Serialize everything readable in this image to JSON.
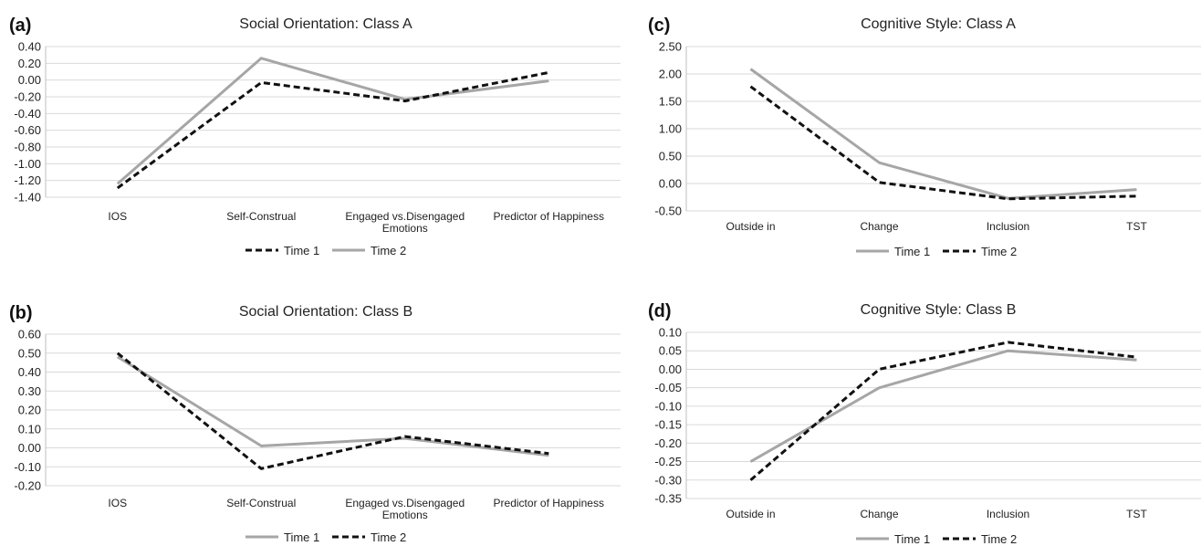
{
  "colors": {
    "grid": "#d9d9d9",
    "axis": "#bfbfbf",
    "solid": "#a6a6a6",
    "dashed": "#111111"
  },
  "chart_data": [
    {
      "panel": "(a)",
      "type": "line",
      "title": "Social Orientation: Class A",
      "categories": [
        "IOS",
        "Self-Construal",
        "Engaged vs.Disengaged Emotions",
        "Predictor of Happiness"
      ],
      "ylim": [
        -1.4,
        0.4
      ],
      "yticks": [
        "0.40",
        "0.20",
        "0.00",
        "-0.20",
        "-0.40",
        "-0.60",
        "-0.80",
        "-1.00",
        "-1.20",
        "-1.40"
      ],
      "grid": true,
      "legend_position": "bottom",
      "series": [
        {
          "name": "Time 1",
          "style": "dashed",
          "values": [
            -1.29,
            -0.03,
            -0.25,
            0.09
          ]
        },
        {
          "name": "Time 2",
          "style": "solid",
          "values": [
            -1.24,
            0.26,
            -0.23,
            -0.01
          ]
        }
      ]
    },
    {
      "panel": "(b)",
      "type": "line",
      "title": "Social Orientation: Class B",
      "categories": [
        "IOS",
        "Self-Construal",
        "Engaged vs.Disengaged Emotions",
        "Predictor of Happiness"
      ],
      "ylim": [
        -0.2,
        0.6
      ],
      "yticks": [
        "0.60",
        "0.50",
        "0.40",
        "0.30",
        "0.20",
        "0.10",
        "0.00",
        "-0.10",
        "-0.20"
      ],
      "grid": true,
      "legend_position": "bottom",
      "series": [
        {
          "name": "Time 1",
          "style": "solid",
          "values": [
            0.48,
            0.01,
            0.05,
            -0.04
          ]
        },
        {
          "name": "Time 2",
          "style": "dashed",
          "values": [
            0.5,
            -0.11,
            0.06,
            -0.03
          ]
        }
      ]
    },
    {
      "panel": "(c)",
      "type": "line",
      "title": "Cognitive Style: Class A",
      "categories": [
        "Outside in",
        "Change",
        "Inclusion",
        "TST"
      ],
      "ylim": [
        -0.5,
        2.5
      ],
      "yticks": [
        "2.50",
        "2.00",
        "1.50",
        "1.00",
        "0.50",
        "0.00",
        "-0.50"
      ],
      "grid": true,
      "legend_position": "bottom",
      "series": [
        {
          "name": "Time 1",
          "style": "solid",
          "values": [
            2.09,
            0.38,
            -0.27,
            -0.11
          ]
        },
        {
          "name": "Time 2",
          "style": "dashed",
          "values": [
            1.77,
            0.02,
            -0.28,
            -0.23
          ]
        }
      ]
    },
    {
      "panel": "(d)",
      "type": "line",
      "title": "Cognitive Style: Class B",
      "categories": [
        "Outside in",
        "Change",
        "Inclusion",
        "TST"
      ],
      "ylim": [
        -0.35,
        0.1
      ],
      "yticks": [
        "0.10",
        "0.05",
        "0.00",
        "-0.05",
        "-0.10",
        "-0.15",
        "-0.20",
        "-0.25",
        "-0.30",
        "-0.35"
      ],
      "grid": true,
      "legend_position": "bottom",
      "series": [
        {
          "name": "Time 1",
          "style": "solid",
          "values": [
            -0.25,
            -0.05,
            0.05,
            0.025
          ]
        },
        {
          "name": "Time 2",
          "style": "dashed",
          "values": [
            -0.3,
            0.0,
            0.073,
            0.033
          ]
        }
      ]
    }
  ]
}
